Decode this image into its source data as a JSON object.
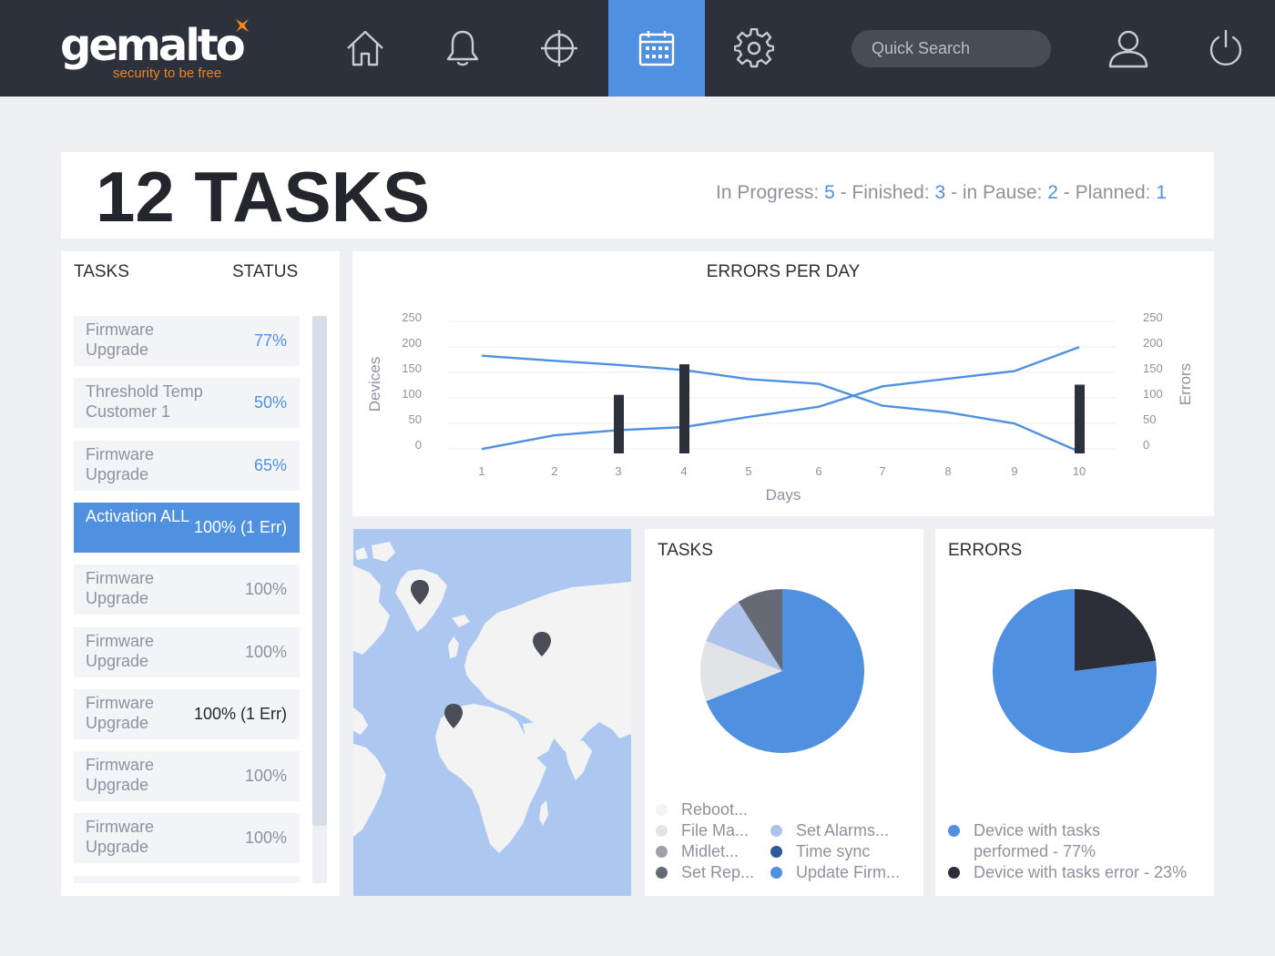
{
  "header": {
    "logo_text": "gemalto",
    "logo_tagline": "security to be free",
    "search_placeholder": "Quick Search",
    "nav": [
      {
        "icon": "home-icon",
        "active": false
      },
      {
        "icon": "bell-icon",
        "active": false
      },
      {
        "icon": "crosshair-icon",
        "active": false
      },
      {
        "icon": "calendar-icon",
        "active": true
      },
      {
        "icon": "gear-icon",
        "active": false
      }
    ],
    "accent": "#4f90e0",
    "bar_color": "#2d313b"
  },
  "title": {
    "heading": "12 TASKS",
    "in_progress_label": "In Progress: ",
    "in_progress": "5",
    "finished_label": " - Finished: ",
    "finished": "3",
    "pause_label": " - in Pause: ",
    "pause": "2",
    "planned_label": " - Planned: ",
    "planned": "1"
  },
  "tasks": {
    "col_tasks": "TASKS",
    "col_status": "STATUS",
    "items": [
      {
        "name": "Firmware Upgrade",
        "status": "77%",
        "style": "blue"
      },
      {
        "name": "Threshold Temp Customer 1",
        "status": "50%",
        "style": "blue"
      },
      {
        "name": "Firmware Upgrade",
        "status": "65%",
        "style": "blue"
      },
      {
        "name": "Activation ALL",
        "status": "100% (1 Err)",
        "style": "active"
      },
      {
        "name": "Firmware Upgrade",
        "status": "100%",
        "style": "grey"
      },
      {
        "name": "Firmware Upgrade",
        "status": "100%",
        "style": "grey"
      },
      {
        "name": "Firmware Upgrade",
        "status": "100% (1 Err)",
        "style": "dark"
      },
      {
        "name": "Firmware Upgrade",
        "status": "100%",
        "style": "grey"
      },
      {
        "name": "Firmware Upgrade",
        "status": "100%",
        "style": "grey"
      }
    ]
  },
  "map": {
    "markers": [
      "greenland-marker",
      "russia-marker",
      "west-africa-marker"
    ]
  },
  "tasks_pie": {
    "title": "TASKS",
    "legend": [
      {
        "label": "Reboot...",
        "color": "#f3f4f7"
      },
      {
        "label": "File Ma...",
        "color": "#e2e3e6"
      },
      {
        "label": "Midlet...",
        "color": "#9ea1a8"
      },
      {
        "label": "Set Rep...",
        "color": "#666a74"
      },
      {
        "label": "Set Alarms...",
        "color": "#adc3ec"
      },
      {
        "label": "Time sync",
        "color": "#2b5b9a"
      },
      {
        "label": "Update Firm...",
        "color": "#4f90e0"
      }
    ]
  },
  "errors_pie": {
    "title": "ERRORS",
    "legend": [
      {
        "label": "Device with tasks performed - 77%",
        "color": "#4f90e0"
      },
      {
        "label": "Device with tasks error - 23%",
        "color": "#2d2f38"
      }
    ]
  },
  "chart_data": [
    {
      "type": "line",
      "title": "ERRORS PER DAY",
      "xlabel": "Days",
      "ylabel": "Devices",
      "y2label": "Errors",
      "x": [
        1,
        2,
        3,
        4,
        5,
        6,
        7,
        8,
        9,
        10
      ],
      "ylim": [
        0,
        250
      ],
      "y2lim": [
        0,
        250
      ],
      "yticks": [
        0,
        50,
        100,
        150,
        200,
        250
      ],
      "grid": true,
      "series": [
        {
          "type": "line",
          "axis": "left",
          "values": [
            188,
            178,
            170,
            160,
            142,
            133,
            90,
            77,
            55,
            0
          ],
          "color": "#4f90e0"
        },
        {
          "type": "line",
          "axis": "left",
          "values": [
            5,
            32,
            42,
            48,
            68,
            88,
            128,
            143,
            158,
            205
          ],
          "color": "#4f90e0"
        },
        {
          "type": "bar",
          "axis": "right",
          "values": [
            0,
            0,
            97,
            157,
            0,
            0,
            0,
            0,
            0,
            117
          ],
          "color": "#2d313b"
        }
      ]
    },
    {
      "type": "pie",
      "title": "TASKS",
      "labels": [
        "Update Firm...",
        "File Ma...",
        "Set Alarms...",
        "Set Rep..."
      ],
      "values": [
        69,
        12,
        10,
        9
      ],
      "colors": [
        "#4f90e0",
        "#e2e3e6",
        "#adc3ec",
        "#666a74"
      ]
    },
    {
      "type": "pie",
      "title": "ERRORS",
      "labels": [
        "Device with tasks error - 23%",
        "Device with tasks performed - 77%"
      ],
      "values": [
        23,
        77
      ],
      "colors": [
        "#2d2f38",
        "#4f90e0"
      ]
    }
  ]
}
